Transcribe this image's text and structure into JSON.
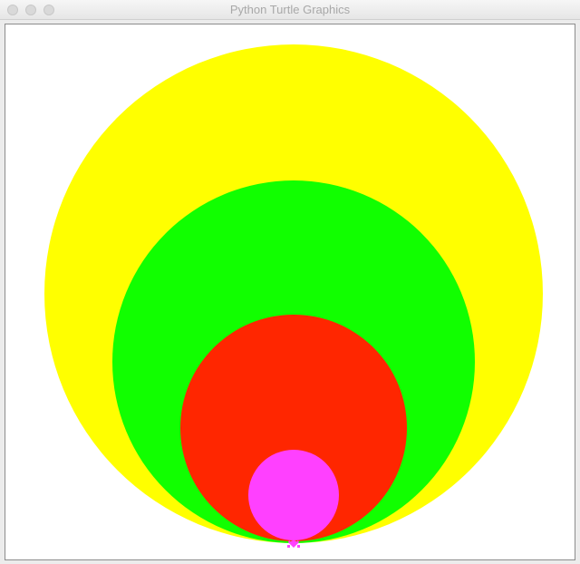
{
  "window": {
    "title": "Python Turtle Graphics",
    "controls": [
      "close-button",
      "minimize-button",
      "zoom-button"
    ]
  },
  "canvas": {
    "background": "#ffffff",
    "shapes": [
      {
        "name": "yellow-circle",
        "fill": "#ffff00"
      },
      {
        "name": "green-circle",
        "fill": "#11ff00"
      },
      {
        "name": "red-circle",
        "fill": "#ff2600"
      },
      {
        "name": "magenta-circle",
        "fill": "#ff40ff"
      }
    ],
    "turtle": {
      "name": "turtle-cursor",
      "color": "#ff40ff"
    }
  }
}
